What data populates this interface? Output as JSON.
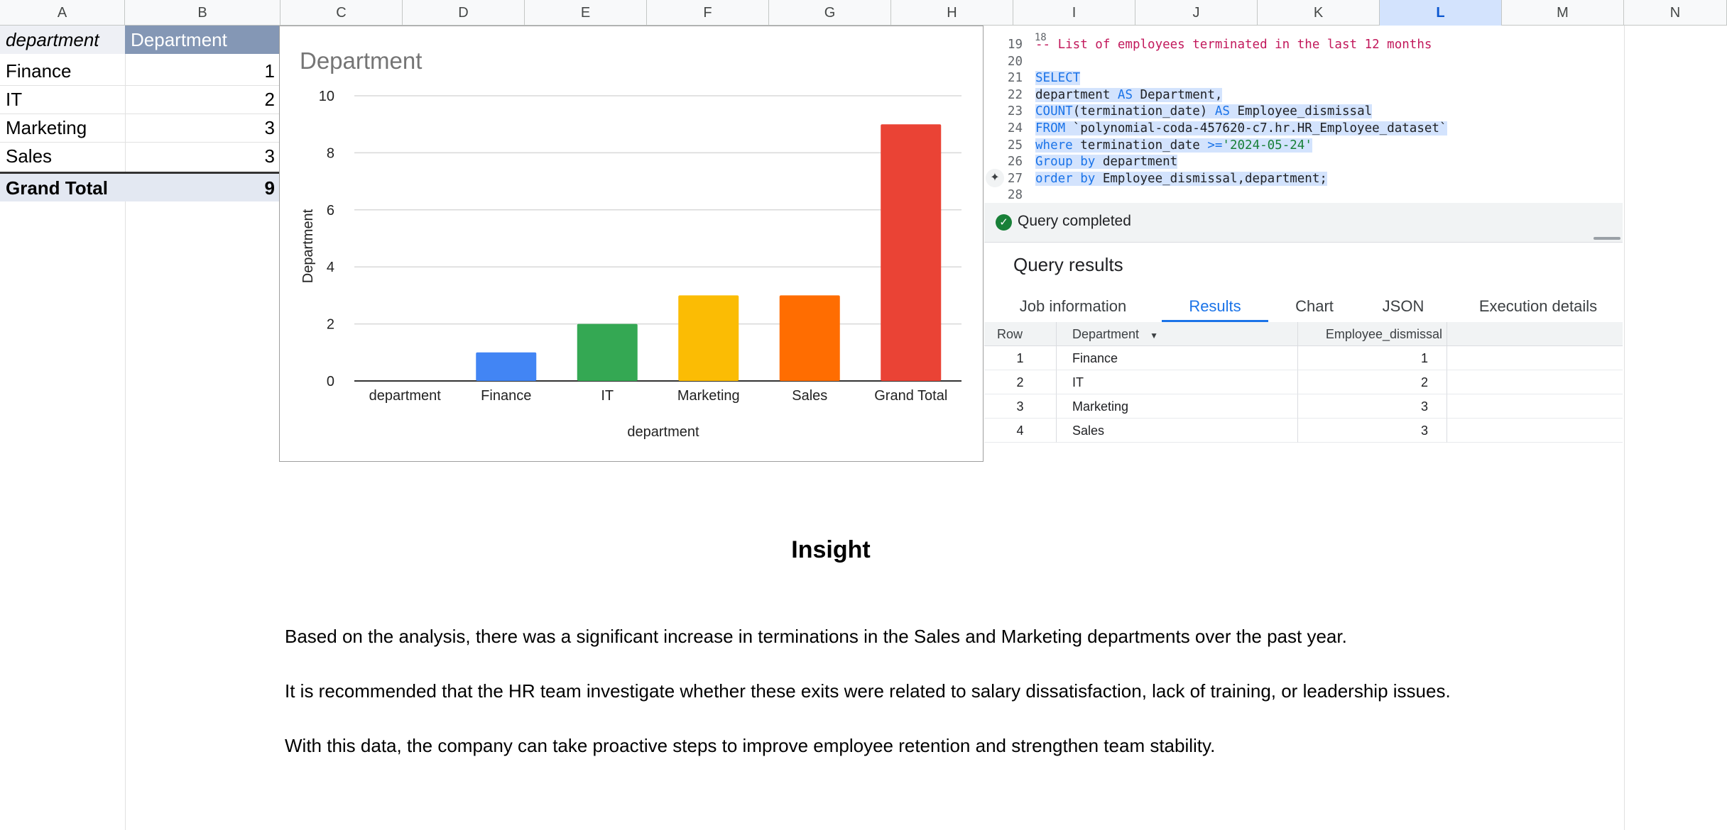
{
  "columns": [
    "A",
    "B",
    "C",
    "D",
    "E",
    "F",
    "G",
    "H",
    "I",
    "J",
    "K",
    "L",
    "M",
    "N"
  ],
  "selected_column": "L",
  "pivot": {
    "header_row": "department",
    "header_value": "Department",
    "rows": [
      {
        "label": "Finance",
        "value": "1"
      },
      {
        "label": "IT",
        "value": "2"
      },
      {
        "label": "Marketing",
        "value": "3"
      },
      {
        "label": "Sales",
        "value": "3"
      }
    ],
    "total_label": "Grand Total",
    "total_value": "9"
  },
  "chart_data": {
    "type": "bar",
    "title": "Department",
    "xlabel": "department",
    "ylabel": "Department",
    "categories": [
      "department",
      "Finance",
      "IT",
      "Marketing",
      "Sales",
      "Grand Total"
    ],
    "values": [
      0,
      1,
      2,
      3,
      3,
      9
    ],
    "colors": [
      "#4285f4",
      "#4285f4",
      "#34a853",
      "#fbbc04",
      "#ff6d01",
      "#ea4335"
    ],
    "ylim": [
      0,
      10
    ],
    "yticks": [
      0,
      2,
      4,
      6,
      8,
      10
    ],
    "grid": true,
    "legend": "none"
  },
  "editor": {
    "top_partial_line": "18",
    "lines": [
      {
        "n": "19",
        "tokens": [
          {
            "t": "-- List of employees terminated in the last 12 months",
            "c": "cm"
          }
        ],
        "hl": false
      },
      {
        "n": "20",
        "tokens": [],
        "hl": false
      },
      {
        "n": "21",
        "tokens": [
          {
            "t": "SELECT",
            "c": "kw"
          }
        ],
        "hl": true
      },
      {
        "n": "22",
        "tokens": [
          {
            "t": "department ",
            "c": "tk"
          },
          {
            "t": "AS",
            "c": "kw"
          },
          {
            "t": " Department,",
            "c": "tk"
          }
        ],
        "hl": true
      },
      {
        "n": "23",
        "tokens": [
          {
            "t": "COUNT",
            "c": "kw"
          },
          {
            "t": "(termination_date) ",
            "c": "tk"
          },
          {
            "t": "AS",
            "c": "kw"
          },
          {
            "t": " Employee_dismissal",
            "c": "tk"
          }
        ],
        "hl": true
      },
      {
        "n": "24",
        "tokens": [
          {
            "t": "FROM",
            "c": "kw"
          },
          {
            "t": " `polynomial-coda-457620-c7.hr.HR_Employee_dataset`",
            "c": "tk"
          }
        ],
        "hl": true
      },
      {
        "n": "25",
        "tokens": [
          {
            "t": "where",
            "c": "kw"
          },
          {
            "t": " termination_date ",
            "c": "tk"
          },
          {
            "t": ">=",
            "c": "kw"
          },
          {
            "t": "'2024-05-24'",
            "c": "st"
          }
        ],
        "hl": true
      },
      {
        "n": "26",
        "tokens": [
          {
            "t": "Group by",
            "c": "kw"
          },
          {
            "t": " department",
            "c": "tk"
          }
        ],
        "hl": true
      },
      {
        "n": "27",
        "tokens": [
          {
            "t": "order by",
            "c": "kw"
          },
          {
            "t": " Employee_dismissal,department;",
            "c": "tk"
          }
        ],
        "hl": true
      },
      {
        "n": "28",
        "tokens": [],
        "hl": false
      }
    ],
    "status": "Query completed",
    "results_title": "Query results",
    "tabs": [
      "Job information",
      "Results",
      "Chart",
      "JSON",
      "Execution details"
    ],
    "active_tab": 1,
    "headers": {
      "row": "Row",
      "department": "Department",
      "dismissal": "Employee_dismissal"
    },
    "rows": [
      {
        "row": "1",
        "department": "Finance",
        "dismissal": "1"
      },
      {
        "row": "2",
        "department": "IT",
        "dismissal": "2"
      },
      {
        "row": "3",
        "department": "Marketing",
        "dismissal": "3"
      },
      {
        "row": "4",
        "department": "Sales",
        "dismissal": "3"
      }
    ]
  },
  "insight": {
    "title": "Insight",
    "paragraphs": [
      "Based on the analysis, there was a significant increase in terminations in the Sales and Marketing departments over the past year.",
      "It is recommended that the HR team investigate whether these exits were related to salary dissatisfaction, lack of training, or leadership issues.",
      "With this data, the company can take proactive steps to improve employee retention and strengthen team stability."
    ]
  }
}
